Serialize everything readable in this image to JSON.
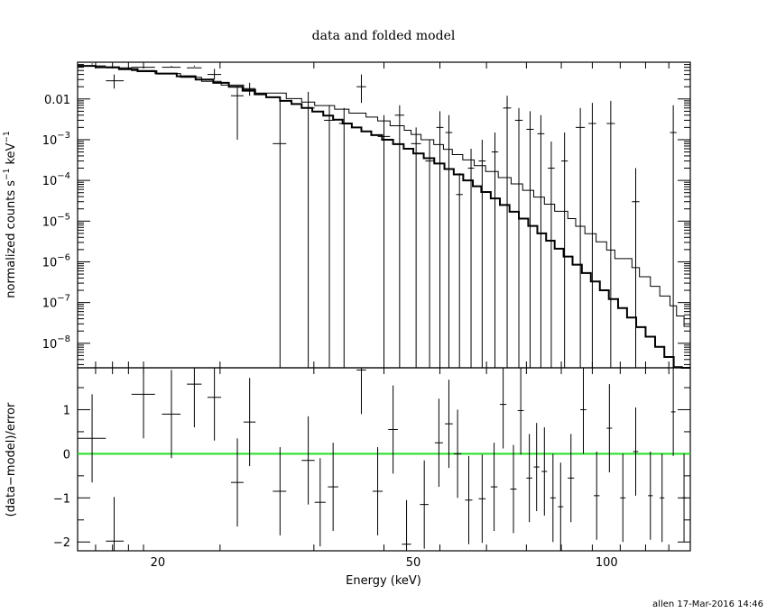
{
  "title": "data and folded model",
  "footer": "allen 17-Mar-2016 14:46",
  "chart_data": [
    {
      "type": "line",
      "panel": "spectrum",
      "title": "data and folded model",
      "xlabel": "Energy (keV)",
      "ylabel_parts": [
        "normalized counts s",
        "−1",
        " keV",
        "−1"
      ],
      "xscale": "log",
      "yscale": "log",
      "xlim": [
        15,
        135
      ],
      "ylim": [
        2.5e-09,
        0.08
      ],
      "y_ticks": [
        {
          "v": 0.01,
          "label": "0.01"
        },
        {
          "v": 0.001,
          "base": "10",
          "exp": "−3"
        },
        {
          "v": 0.0001,
          "base": "10",
          "exp": "−4"
        },
        {
          "v": 1e-05,
          "base": "10",
          "exp": "−5"
        },
        {
          "v": 1e-06,
          "base": "10",
          "exp": "−6"
        },
        {
          "v": 1e-07,
          "base": "10",
          "exp": "−7"
        },
        {
          "v": 1e-08,
          "base": "10",
          "exp": "−8"
        }
      ],
      "series": [
        {
          "kind": "data",
          "points": [
            [
              15.8,
              15.0,
              16.6,
              0.065,
              0.07,
              0.075
            ],
            [
              17.1,
              16.6,
              17.7,
              0.028,
              0.018,
              0.04
            ],
            [
              19.0,
              18.2,
              19.8,
              0.06,
              0.062,
              0.066
            ],
            [
              21.0,
              20.3,
              21.7,
              0.06,
              0.062,
              0.065
            ],
            [
              22.8,
              22.2,
              23.4,
              0.058,
              0.062,
              0.066
            ],
            [
              24.5,
              23.9,
              25.1,
              0.04,
              0.03,
              0.055
            ],
            [
              26.6,
              26.0,
              27.2,
              0.012,
              0.001,
              0.02
            ],
            [
              27.8,
              27.2,
              28.4,
              0.018,
              0.012,
              0.025
            ],
            [
              31.0,
              30.2,
              31.7,
              0.0008,
              2.5e-09,
              0.01
            ],
            [
              34.3,
              33.5,
              35.1,
              0.006,
              2.5e-09,
              0.015
            ],
            [
              37.0,
              36.3,
              37.7,
              0.003,
              2.5e-09,
              0.007
            ],
            [
              39.0,
              38.3,
              39.7,
              0.0025,
              2.5e-09,
              0.006
            ],
            [
              41.5,
              40.8,
              42.2,
              0.02,
              0.008,
              0.04
            ],
            [
              45.0,
              44.0,
              46.0,
              0.0012,
              2.5e-09,
              0.004
            ],
            [
              47.6,
              46.8,
              48.4,
              0.004,
              2.5e-09,
              0.007
            ],
            [
              50.5,
              49.6,
              51.4,
              0.0008,
              2.5e-09,
              0.002
            ],
            [
              53.0,
              52.2,
              53.8,
              0.0003,
              2.5e-09,
              0.001
            ],
            [
              55.0,
              54.3,
              55.7,
              0.002,
              2.5e-09,
              0.005
            ],
            [
              56.8,
              56.1,
              57.5,
              0.0015,
              2.5e-09,
              0.004
            ],
            [
              59.0,
              58.3,
              59.7,
              4.5e-05,
              2.5e-09,
              0.00015
            ],
            [
              61.5,
              60.8,
              62.2,
              0.0002,
              2.5e-09,
              0.0006
            ],
            [
              64.0,
              63.2,
              64.8,
              0.0003,
              2.5e-09,
              0.001
            ],
            [
              67.0,
              66.2,
              67.8,
              0.0005,
              2.5e-09,
              0.0015
            ],
            [
              70.0,
              69.0,
              71.0,
              0.006,
              2.5e-09,
              0.012
            ],
            [
              73.0,
              72.0,
              74.0,
              0.003,
              2.5e-09,
              0.006
            ],
            [
              76.0,
              75.0,
              77.0,
              0.0018,
              2.5e-09,
              0.005
            ],
            [
              79.0,
              78.0,
              80.0,
              0.0014,
              2.5e-09,
              0.004
            ],
            [
              82.0,
              81.0,
              83.0,
              0.0002,
              2.5e-09,
              0.0009
            ],
            [
              86.0,
              85.0,
              87.0,
              0.0003,
              2.5e-09,
              0.0015
            ],
            [
              91.0,
              89.5,
              92.5,
              0.002,
              2.5e-09,
              0.006
            ],
            [
              95.0,
              93.7,
              96.3,
              0.0025,
              2.5e-09,
              0.008
            ],
            [
              101.5,
              100.0,
              103.0,
              0.0025,
              2.5e-09,
              0.009
            ],
            [
              111.0,
              109.5,
              112.5,
              3e-05,
              2.5e-09,
              0.0002
            ],
            [
              127.0,
              125.5,
              128.5,
              0.0015,
              2.5e-09,
              0.007
            ]
          ]
        },
        {
          "kind": "model-thick",
          "points": [
            [
              15.0,
              0.065
            ],
            [
              16.0,
              0.06
            ],
            [
              17.4,
              0.054
            ],
            [
              18.6,
              0.048
            ],
            [
              19.9,
              0.042
            ],
            [
              21.4,
              0.036
            ],
            [
              22.9,
              0.03
            ],
            [
              24.4,
              0.025
            ],
            [
              25.8,
              0.02
            ],
            [
              27.1,
              0.016
            ],
            [
              28.3,
              0.013
            ],
            [
              29.5,
              0.011
            ],
            [
              31.0,
              0.009
            ],
            [
              32.3,
              0.0075
            ],
            [
              33.5,
              0.006
            ],
            [
              34.8,
              0.0049
            ],
            [
              36.2,
              0.0039
            ],
            [
              37.5,
              0.0031
            ],
            [
              38.8,
              0.0025
            ],
            [
              40.1,
              0.002
            ],
            [
              41.5,
              0.0016
            ],
            [
              43.0,
              0.0013
            ],
            [
              44.7,
              0.001
            ],
            [
              46.5,
              0.00078
            ],
            [
              48.3,
              0.0006
            ],
            [
              50.0,
              0.00046
            ],
            [
              51.9,
              0.00035
            ],
            [
              53.9,
              0.00026
            ],
            [
              55.9,
              0.00019
            ],
            [
              57.8,
              0.00014
            ],
            [
              59.8,
              0.0001
            ],
            [
              61.9,
              7.2e-05
            ],
            [
              63.8,
              5.2e-05
            ],
            [
              66.0,
              3.6e-05
            ],
            [
              68.2,
              2.5e-05
            ],
            [
              70.6,
              1.7e-05
            ],
            [
              73.0,
              1.15e-05
            ],
            [
              75.5,
              7.6e-06
            ],
            [
              78.0,
              5e-06
            ],
            [
              80.5,
              3.3e-06
            ],
            [
              83.0,
              2.1e-06
            ],
            [
              85.7,
              1.35e-06
            ],
            [
              88.5,
              8.5e-07
            ],
            [
              91.5,
              5.3e-07
            ],
            [
              94.5,
              3.3e-07
            ],
            [
              97.6,
              2e-07
            ],
            [
              100.8,
              1.22e-07
            ],
            [
              104.2,
              7.3e-08
            ],
            [
              107.6,
              4.3e-08
            ],
            [
              111.2,
              2.5e-08
            ],
            [
              115.0,
              1.45e-08
            ],
            [
              119.0,
              8.2e-09
            ],
            [
              123.0,
              4.6e-09
            ],
            [
              127.2,
              2.6e-09
            ],
            [
              131.0,
              2.5e-09
            ],
            [
              135.0,
              2.5e-09
            ]
          ]
        },
        {
          "kind": "model-thin",
          "points": [
            [
              16.6,
              0.058
            ],
            [
              18.2,
              0.05
            ],
            [
              19.8,
              0.042
            ],
            [
              21.7,
              0.034
            ],
            [
              23.4,
              0.027
            ],
            [
              25.1,
              0.022
            ],
            [
              27.2,
              0.017
            ],
            [
              28.4,
              0.014
            ],
            [
              31.7,
              0.0102
            ],
            [
              33.5,
              0.0084
            ],
            [
              35.1,
              0.0069
            ],
            [
              37.7,
              0.0056
            ],
            [
              39.7,
              0.0045
            ],
            [
              42.2,
              0.0036
            ],
            [
              44.0,
              0.0029
            ],
            [
              46.0,
              0.0022
            ],
            [
              48.4,
              0.0017
            ],
            [
              49.6,
              0.00135
            ],
            [
              51.4,
              0.001
            ],
            [
              53.8,
              0.00076
            ],
            [
              55.7,
              0.00058
            ],
            [
              57.5,
              0.00043
            ],
            [
              59.7,
              0.00032
            ],
            [
              62.2,
              0.00023
            ],
            [
              64.8,
              0.000165
            ],
            [
              67.8,
              0.000117
            ],
            [
              71.0,
              8.2e-05
            ],
            [
              74.0,
              5.7e-05
            ],
            [
              77.0,
              3.9e-05
            ],
            [
              80.0,
              2.6e-05
            ],
            [
              83.0,
              1.75e-05
            ],
            [
              87.0,
              1.15e-05
            ],
            [
              89.5,
              7.5e-06
            ],
            [
              92.5,
              4.9e-06
            ],
            [
              96.3,
              3.1e-06
            ],
            [
              100.0,
              1.95e-06
            ],
            [
              103.0,
              1.2e-06
            ],
            [
              109.5,
              7.2e-07
            ],
            [
              112.5,
              4.3e-07
            ],
            [
              117.0,
              2.5e-07
            ],
            [
              121.0,
              1.45e-07
            ],
            [
              125.5,
              8.3e-08
            ],
            [
              128.5,
              4.7e-08
            ],
            [
              132.0,
              2.6e-08
            ],
            [
              135.0,
              1.5e-08
            ]
          ]
        }
      ]
    },
    {
      "type": "scatter",
      "panel": "residuals",
      "xlabel": "Energy (keV)",
      "ylabel": "(data−model)/error",
      "xscale": "log",
      "xlim": [
        15,
        135
      ],
      "ylim": [
        -2.2,
        1.95
      ],
      "x_ticks": [
        {
          "v": 20,
          "label": "20"
        },
        {
          "v": 50,
          "label": "50"
        },
        {
          "v": 100,
          "label": "100"
        }
      ],
      "y_ticks": [
        {
          "v": -2,
          "label": "−2"
        },
        {
          "v": -1,
          "label": "−1"
        },
        {
          "v": 0,
          "label": "0"
        },
        {
          "v": 1,
          "label": "1"
        }
      ],
      "zero_line_color": "#22dd22",
      "points": [
        [
          15.8,
          15.0,
          16.6,
          0.35,
          -0.65,
          1.35
        ],
        [
          17.1,
          16.6,
          17.7,
          -1.98,
          -2.2,
          -0.98
        ],
        [
          19.0,
          18.2,
          19.8,
          1.35,
          0.35,
          1.95
        ],
        [
          21.0,
          20.3,
          21.7,
          0.9,
          -0.1,
          1.9
        ],
        [
          22.8,
          22.2,
          23.4,
          1.58,
          0.6,
          1.95
        ],
        [
          24.5,
          23.9,
          25.1,
          1.28,
          0.3,
          1.95
        ],
        [
          26.6,
          26.0,
          27.2,
          -0.65,
          -1.65,
          0.35
        ],
        [
          27.8,
          27.2,
          28.4,
          0.72,
          -0.28,
          1.72
        ],
        [
          31.0,
          30.2,
          31.7,
          -0.85,
          -1.85,
          0.15
        ],
        [
          34.3,
          33.5,
          35.1,
          -0.15,
          -1.15,
          0.85
        ],
        [
          35.8,
          35.1,
          36.5,
          -1.1,
          -2.1,
          -0.1
        ],
        [
          37.5,
          36.8,
          38.2,
          -0.75,
          -1.75,
          0.25
        ],
        [
          41.5,
          40.8,
          42.2,
          1.9,
          0.9,
          1.95
        ],
        [
          44.0,
          43.2,
          44.8,
          -0.85,
          -1.85,
          0.15
        ],
        [
          46.5,
          45.7,
          47.3,
          0.55,
          -0.45,
          1.55
        ],
        [
          48.8,
          48.0,
          49.6,
          -2.05,
          -2.2,
          -1.05
        ],
        [
          52.0,
          51.2,
          52.8,
          -1.15,
          -2.15,
          -0.15
        ],
        [
          54.8,
          54.0,
          55.6,
          0.25,
          -0.75,
          1.25
        ],
        [
          56.8,
          56.0,
          57.6,
          0.68,
          -0.32,
          1.68
        ],
        [
          58.6,
          57.8,
          59.4,
          0.0,
          -1.0,
          1.0
        ],
        [
          61.0,
          60.2,
          61.8,
          -1.05,
          -2.05,
          -0.05
        ],
        [
          64.0,
          63.2,
          64.8,
          -1.02,
          -2.02,
          -0.02
        ],
        [
          66.8,
          66.0,
          67.6,
          -0.75,
          -1.75,
          0.25
        ],
        [
          69.0,
          68.2,
          69.8,
          1.12,
          0.12,
          1.95
        ],
        [
          71.6,
          70.8,
          72.4,
          -0.8,
          -1.8,
          0.2
        ],
        [
          73.5,
          72.7,
          74.3,
          0.98,
          -0.02,
          1.95
        ],
        [
          75.8,
          75.0,
          76.6,
          -0.55,
          -1.55,
          0.45
        ],
        [
          77.8,
          77.0,
          78.6,
          -0.3,
          -1.3,
          0.7
        ],
        [
          80.0,
          79.2,
          80.8,
          -0.4,
          -1.4,
          0.6
        ],
        [
          82.5,
          81.7,
          83.3,
          -1.0,
          -2.0,
          0.0
        ],
        [
          84.8,
          84.0,
          85.6,
          -1.2,
          -2.2,
          -0.2
        ],
        [
          88.0,
          87.0,
          89.0,
          -0.55,
          -1.55,
          0.45
        ],
        [
          92.0,
          91.0,
          93.0,
          1.0,
          0.0,
          1.95
        ],
        [
          96.5,
          95.5,
          97.5,
          -0.95,
          -1.95,
          0.05
        ],
        [
          101.0,
          100.0,
          102.0,
          0.58,
          -0.42,
          1.58
        ],
        [
          106.0,
          105.0,
          107.0,
          -1.0,
          -2.0,
          0.0
        ],
        [
          111.0,
          110.0,
          112.0,
          0.05,
          -0.95,
          1.05
        ],
        [
          117.0,
          116.0,
          118.0,
          -0.95,
          -1.95,
          0.05
        ],
        [
          122.0,
          121.0,
          123.0,
          -1.0,
          -2.0,
          0.0
        ],
        [
          127.0,
          126.0,
          128.0,
          0.95,
          -0.05,
          1.95
        ],
        [
          132.0,
          131.0,
          133.0,
          -1.0,
          -2.0,
          0.0
        ]
      ]
    }
  ]
}
